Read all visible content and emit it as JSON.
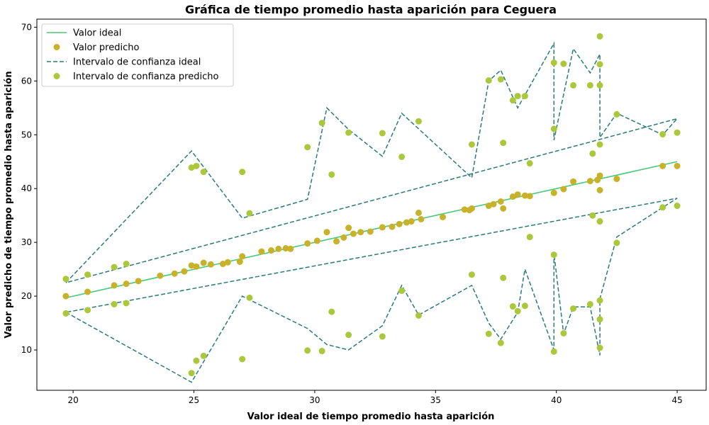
{
  "chart_data": {
    "type": "scatter",
    "title": "Gráfica de tiempo promedio hasta aparición para Ceguera",
    "xlabel": "Valor ideal de tiempo promedio hasta aparición",
    "ylabel": "Valor predicho de tiempo promedio hasta aparición",
    "xlim": [
      18.5,
      46.2
    ],
    "ylim": [
      2.5,
      71.5
    ],
    "xticks": [
      20,
      25,
      30,
      35,
      40,
      45
    ],
    "yticks": [
      10,
      20,
      30,
      40,
      50,
      60,
      70
    ],
    "grid": false,
    "legend_position": "top-left",
    "colors": {
      "ideal": "#47c87a",
      "predicted": "#c8b22a",
      "ci_ideal": "#2a7b78",
      "ci_predicted": "#aac83a"
    },
    "legend": [
      {
        "label": "Valor ideal",
        "kind": "line"
      },
      {
        "label": "Valor predicho",
        "kind": "dot"
      },
      {
        "label": "Intervalo de confianza ideal",
        "kind": "dash"
      },
      {
        "label": "Intervalo de confianza predicho",
        "kind": "dot2"
      }
    ],
    "ideal_line": {
      "x": [
        19.7,
        45.0
      ],
      "y": [
        19.7,
        45.0
      ]
    },
    "predicted": [
      [
        19.7,
        20.0
      ],
      [
        20.6,
        20.8
      ],
      [
        21.7,
        22.0
      ],
      [
        22.2,
        22.3
      ],
      [
        22.7,
        22.8
      ],
      [
        23.6,
        23.8
      ],
      [
        24.2,
        24.2
      ],
      [
        24.6,
        24.6
      ],
      [
        24.9,
        25.7
      ],
      [
        25.1,
        25.5
      ],
      [
        25.4,
        26.2
      ],
      [
        25.7,
        25.9
      ],
      [
        26.2,
        26.0
      ],
      [
        26.4,
        26.3
      ],
      [
        26.9,
        26.4
      ],
      [
        27.0,
        27.4
      ],
      [
        27.8,
        28.3
      ],
      [
        28.2,
        28.5
      ],
      [
        28.5,
        28.8
      ],
      [
        28.8,
        28.9
      ],
      [
        29.0,
        28.8
      ],
      [
        29.7,
        29.8
      ],
      [
        30.1,
        30.3
      ],
      [
        30.5,
        31.9
      ],
      [
        30.9,
        30.2
      ],
      [
        31.2,
        30.9
      ],
      [
        31.4,
        32.7
      ],
      [
        31.6,
        31.6
      ],
      [
        31.9,
        31.9
      ],
      [
        32.3,
        32.0
      ],
      [
        32.8,
        32.8
      ],
      [
        33.2,
        32.9
      ],
      [
        33.5,
        33.4
      ],
      [
        33.8,
        33.7
      ],
      [
        34.0,
        33.9
      ],
      [
        34.3,
        35.5
      ],
      [
        34.4,
        34.3
      ],
      [
        35.3,
        34.7
      ],
      [
        36.2,
        36.1
      ],
      [
        36.4,
        36.0
      ],
      [
        36.5,
        36.3
      ],
      [
        37.2,
        36.8
      ],
      [
        37.4,
        37.1
      ],
      [
        37.7,
        37.6
      ],
      [
        37.8,
        36.3
      ],
      [
        38.2,
        38.5
      ],
      [
        38.4,
        38.9
      ],
      [
        38.7,
        38.7
      ],
      [
        38.9,
        38.6
      ],
      [
        39.9,
        39.2
      ],
      [
        40.3,
        39.9
      ],
      [
        40.7,
        41.3
      ],
      [
        41.4,
        41.4
      ],
      [
        41.7,
        41.6
      ],
      [
        41.8,
        39.7
      ],
      [
        41.8,
        42.4
      ],
      [
        42.5,
        41.8
      ],
      [
        44.4,
        44.2
      ],
      [
        45.0,
        44.2
      ]
    ],
    "ci_predicted": [
      [
        19.7,
        23.2
      ],
      [
        19.7,
        16.8
      ],
      [
        20.6,
        24.0
      ],
      [
        20.6,
        17.4
      ],
      [
        21.7,
        25.4
      ],
      [
        21.7,
        18.5
      ],
      [
        22.2,
        26.0
      ],
      [
        22.2,
        18.7
      ],
      [
        24.9,
        43.9
      ],
      [
        24.9,
        5.7
      ],
      [
        25.1,
        44.2
      ],
      [
        25.1,
        8.0
      ],
      [
        25.4,
        43.1
      ],
      [
        25.4,
        8.9
      ],
      [
        27.0,
        43.1
      ],
      [
        27.0,
        8.3
      ],
      [
        27.3,
        35.4
      ],
      [
        27.3,
        19.7
      ],
      [
        29.7,
        47.7
      ],
      [
        29.7,
        9.9
      ],
      [
        30.3,
        52.2
      ],
      [
        30.3,
        9.8
      ],
      [
        30.7,
        42.6
      ],
      [
        30.7,
        17.1
      ],
      [
        31.4,
        50.4
      ],
      [
        31.4,
        12.8
      ],
      [
        32.8,
        50.3
      ],
      [
        32.8,
        12.5
      ],
      [
        33.6,
        45.9
      ],
      [
        33.6,
        21.0
      ],
      [
        34.3,
        52.5
      ],
      [
        34.3,
        16.4
      ],
      [
        36.5,
        48.2
      ],
      [
        36.5,
        24.0
      ],
      [
        37.2,
        60.1
      ],
      [
        37.2,
        13.0
      ],
      [
        37.7,
        60.3
      ],
      [
        37.7,
        11.3
      ],
      [
        37.8,
        48.5
      ],
      [
        37.8,
        23.4
      ],
      [
        38.2,
        56.4
      ],
      [
        38.2,
        18.1
      ],
      [
        38.4,
        57.2
      ],
      [
        38.4,
        17.2
      ],
      [
        38.7,
        57.2
      ],
      [
        38.7,
        18.2
      ],
      [
        38.9,
        44.7
      ],
      [
        38.9,
        31.0
      ],
      [
        39.9,
        63.4
      ],
      [
        39.9,
        9.7
      ],
      [
        39.9,
        51.1
      ],
      [
        39.9,
        27.7
      ],
      [
        40.3,
        63.2
      ],
      [
        40.3,
        13.1
      ],
      [
        40.7,
        59.2
      ],
      [
        40.7,
        17.7
      ],
      [
        41.4,
        59.2
      ],
      [
        41.4,
        18.5
      ],
      [
        41.5,
        46.5
      ],
      [
        41.5,
        35.0
      ],
      [
        41.8,
        68.3
      ],
      [
        41.8,
        10.4
      ],
      [
        41.8,
        63.1
      ],
      [
        41.8,
        15.7
      ],
      [
        41.8,
        59.2
      ],
      [
        41.8,
        19.2
      ],
      [
        41.8,
        48.2
      ],
      [
        41.8,
        33.9
      ],
      [
        42.5,
        53.8
      ],
      [
        42.5,
        29.9
      ],
      [
        44.4,
        50.1
      ],
      [
        44.4,
        36.5
      ],
      [
        45.0,
        50.4
      ],
      [
        45.0,
        36.8
      ]
    ],
    "ci_ideal_upper": [
      [
        19.7,
        22.5
      ],
      [
        24.9,
        47.0
      ],
      [
        27.0,
        34.5
      ],
      [
        29.7,
        38.0
      ],
      [
        30.5,
        55.0
      ],
      [
        31.4,
        51.0
      ],
      [
        32.8,
        46.0
      ],
      [
        33.6,
        54.0
      ],
      [
        36.5,
        42.0
      ],
      [
        37.2,
        60.0
      ],
      [
        37.7,
        62.0
      ],
      [
        38.4,
        55.0
      ],
      [
        39.9,
        67.0
      ],
      [
        39.9,
        49.0
      ],
      [
        40.7,
        66.0
      ],
      [
        41.4,
        61.5
      ],
      [
        41.8,
        65.0
      ],
      [
        41.8,
        49.5
      ],
      [
        42.5,
        54.0
      ],
      [
        44.4,
        50.0
      ],
      [
        45.0,
        53.0
      ],
      [
        19.7,
        22.5
      ]
    ],
    "ci_ideal_lower": [
      [
        19.7,
        17.0
      ],
      [
        24.9,
        4.0
      ],
      [
        27.0,
        20.0
      ],
      [
        29.7,
        14.0
      ],
      [
        30.5,
        11.0
      ],
      [
        31.4,
        10.0
      ],
      [
        32.8,
        14.5
      ],
      [
        33.6,
        22.0
      ],
      [
        34.3,
        16.5
      ],
      [
        36.5,
        22.0
      ],
      [
        37.2,
        15.0
      ],
      [
        37.7,
        12.0
      ],
      [
        38.4,
        17.0
      ],
      [
        38.7,
        25.0
      ],
      [
        39.9,
        10.0
      ],
      [
        39.9,
        28.0
      ],
      [
        40.3,
        13.0
      ],
      [
        40.7,
        18.0
      ],
      [
        41.4,
        18.0
      ],
      [
        41.8,
        9.0
      ],
      [
        41.8,
        19.5
      ],
      [
        42.5,
        31.0
      ],
      [
        44.4,
        36.5
      ],
      [
        45.0,
        38.2
      ],
      [
        19.7,
        17.0
      ]
    ]
  }
}
